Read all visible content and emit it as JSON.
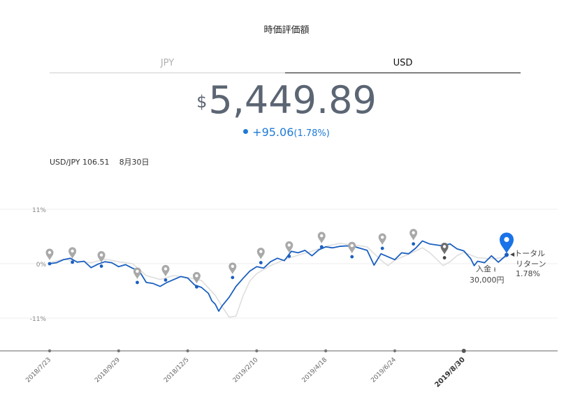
{
  "header": {
    "title": "時価評価額"
  },
  "tabs": [
    {
      "label": "JPY",
      "active": false
    },
    {
      "label": "USD",
      "active": true
    }
  ],
  "valuation": {
    "currency_symbol": "$",
    "amount": "5,449.89",
    "change": "+95.06",
    "change_pct": "(1.78%)"
  },
  "fx": {
    "pair_rate": "USD/JPY 106.51",
    "date": "8月30日"
  },
  "annotations": {
    "deposit_label": "入金",
    "deposit_amount": "30,000円",
    "total_return_line1": "トータル",
    "total_return_line2": "リターン",
    "total_return_pct": "1.78%"
  },
  "colors": {
    "primary": "#1a5fc0",
    "accent": "#1e7ad6",
    "benchmark": "#dedede",
    "marker_gray": "#a9a9a9"
  },
  "chart_data": {
    "type": "line",
    "ylim": [
      -15,
      13
    ],
    "y_ticks": [
      {
        "value": 11,
        "label": "11%"
      },
      {
        "value": 0,
        "label": "0%"
      },
      {
        "value": -11,
        "label": "-11%"
      }
    ],
    "x_ticks": [
      {
        "value": 0,
        "label": "2018/7/23"
      },
      {
        "value": 10,
        "label": "2018/9/29"
      },
      {
        "value": 20,
        "label": "2018/12/5"
      },
      {
        "value": 30,
        "label": "2019/2/10"
      },
      {
        "value": 40,
        "label": "2019/4/18"
      },
      {
        "value": 50,
        "label": "2019/6/24"
      },
      {
        "value": 60,
        "label": "2019/8/30",
        "bold": true
      }
    ],
    "x_range": [
      0,
      66.2
    ],
    "series": [
      {
        "role": "portfolio",
        "points": [
          [
            0,
            0
          ],
          [
            1,
            0.2
          ],
          [
            2,
            0.8
          ],
          [
            3,
            1.1
          ],
          [
            4,
            0.3
          ],
          [
            5,
            0.5
          ],
          [
            6,
            -0.8
          ],
          [
            7,
            -0.1
          ],
          [
            8,
            0.4
          ],
          [
            9,
            0.2
          ],
          [
            10,
            -0.6
          ],
          [
            11,
            -0.2
          ],
          [
            12,
            -0.9
          ],
          [
            13,
            -1.5
          ],
          [
            14,
            -3.8
          ],
          [
            15,
            -4.0
          ],
          [
            16,
            -4.6
          ],
          [
            17,
            -3.8
          ],
          [
            18,
            -3.2
          ],
          [
            19,
            -2.6
          ],
          [
            20,
            -2.9
          ],
          [
            21,
            -4.3
          ],
          [
            22,
            -4.8
          ],
          [
            23,
            -6.0
          ],
          [
            23.5,
            -7.5
          ],
          [
            24,
            -8.2
          ],
          [
            24.5,
            -9.6
          ],
          [
            25,
            -8.5
          ],
          [
            26,
            -6.8
          ],
          [
            27,
            -4.6
          ],
          [
            28,
            -3.0
          ],
          [
            29,
            -1.5
          ],
          [
            30,
            -0.6
          ],
          [
            31,
            -0.9
          ],
          [
            32,
            0.4
          ],
          [
            33,
            1.1
          ],
          [
            34,
            0.6
          ],
          [
            35,
            2.5
          ],
          [
            36,
            2.2
          ],
          [
            37,
            2.7
          ],
          [
            38,
            1.6
          ],
          [
            39,
            2.8
          ],
          [
            40,
            3.4
          ],
          [
            41,
            3.2
          ],
          [
            42,
            3.5
          ],
          [
            43,
            3.6
          ],
          [
            44,
            3.5
          ],
          [
            45,
            3.1
          ],
          [
            46,
            2.7
          ],
          [
            47,
            -0.3
          ],
          [
            48,
            2.0
          ],
          [
            49,
            1.4
          ],
          [
            50,
            0.8
          ],
          [
            51,
            2.2
          ],
          [
            52,
            2.0
          ],
          [
            53,
            3.1
          ],
          [
            54,
            4.6
          ],
          [
            55,
            4.0
          ],
          [
            56,
            3.8
          ],
          [
            57,
            3.6
          ],
          [
            58,
            4.0
          ],
          [
            59,
            3.0
          ],
          [
            60,
            2.6
          ],
          [
            61,
            1.0
          ],
          [
            61.5,
            -0.4
          ],
          [
            62,
            0.5
          ],
          [
            63,
            0.2
          ],
          [
            64,
            1.6
          ],
          [
            65,
            0.3
          ],
          [
            66.2,
            1.78
          ]
        ]
      },
      {
        "role": "benchmark",
        "points": [
          [
            0,
            0.2
          ],
          [
            2,
            0.9
          ],
          [
            4,
            0.5
          ],
          [
            6,
            0.2
          ],
          [
            8,
            0.9
          ],
          [
            10,
            0.4
          ],
          [
            12,
            0
          ],
          [
            14,
            -2.4
          ],
          [
            16,
            -3.2
          ],
          [
            18,
            -2.4
          ],
          [
            20,
            -2.8
          ],
          [
            22,
            -3.4
          ],
          [
            24,
            -6.4
          ],
          [
            25,
            -8.7
          ],
          [
            26,
            -10.8
          ],
          [
            27,
            -10.6
          ],
          [
            28,
            -6.6
          ],
          [
            29,
            -3.5
          ],
          [
            30,
            -2.0
          ],
          [
            32,
            -0.4
          ],
          [
            34,
            0.8
          ],
          [
            36,
            1.7
          ],
          [
            38,
            2.5
          ],
          [
            40,
            3.5
          ],
          [
            42,
            4.1
          ],
          [
            44,
            3.8
          ],
          [
            46,
            3.4
          ],
          [
            48,
            0.7
          ],
          [
            49,
            -0.4
          ],
          [
            50,
            0.7
          ],
          [
            52,
            1.9
          ],
          [
            54,
            3.2
          ],
          [
            55,
            2.3
          ],
          [
            56,
            1.0
          ],
          [
            57,
            -0.4
          ],
          [
            58,
            0.4
          ],
          [
            59,
            1.6
          ],
          [
            60,
            2.3
          ],
          [
            62,
            1.2
          ],
          [
            64,
            1.0
          ],
          [
            66.2,
            1.3
          ]
        ]
      }
    ],
    "markers": [
      {
        "x": 0,
        "y": 0,
        "kind": "gray"
      },
      {
        "x": 3.3,
        "y": 0.3,
        "kind": "gray"
      },
      {
        "x": 7.5,
        "y": -0.5,
        "kind": "gray"
      },
      {
        "x": 12.7,
        "y": -3.8,
        "kind": "gray"
      },
      {
        "x": 16.8,
        "y": -3.3,
        "kind": "gray"
      },
      {
        "x": 21.3,
        "y": -4.7,
        "kind": "gray"
      },
      {
        "x": 26.5,
        "y": -2.8,
        "kind": "gray"
      },
      {
        "x": 30.6,
        "y": 0.2,
        "kind": "gray"
      },
      {
        "x": 34.7,
        "y": 1.5,
        "kind": "gray"
      },
      {
        "x": 39.4,
        "y": 3.4,
        "kind": "gray"
      },
      {
        "x": 43.8,
        "y": 1.4,
        "kind": "gray"
      },
      {
        "x": 48.2,
        "y": 3.1,
        "kind": "gray"
      },
      {
        "x": 52.7,
        "y": 4.0,
        "kind": "gray"
      },
      {
        "x": 57.2,
        "y": 1.2,
        "kind": "dark"
      },
      {
        "x": 66.2,
        "y": 1.78,
        "kind": "blue"
      }
    ]
  }
}
